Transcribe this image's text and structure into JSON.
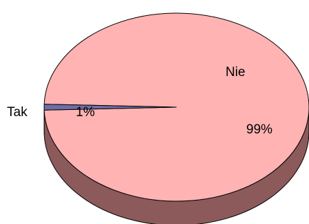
{
  "chart_data": {
    "type": "pie",
    "style": "3d",
    "slices": [
      {
        "name": "Nie",
        "value": 99,
        "label": "99%",
        "color": "#ffb3b3",
        "side_color": "#8c5a5a"
      },
      {
        "name": "Tak",
        "value": 1,
        "label": "1%",
        "color": "#6e6ea6",
        "side_color": "#3a3a66"
      }
    ],
    "title": "",
    "legend": "none"
  }
}
